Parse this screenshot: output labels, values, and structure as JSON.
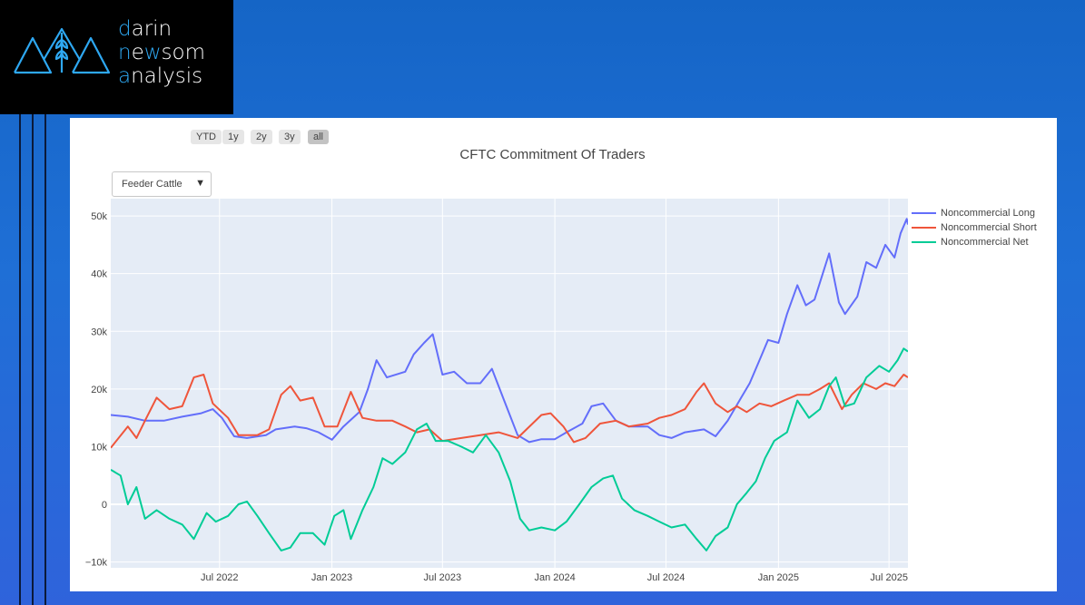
{
  "brand": {
    "line1_initial": "d",
    "line1_rest": "arin",
    "line2_initial": "n",
    "line2_mid": "e",
    "line2_accent": "w",
    "line2_rest": "som",
    "line3_initial": "a",
    "line3_rest": "nalysis",
    "accent_color": "#2ea8f2"
  },
  "range_buttons": [
    {
      "label": "YTD",
      "active": false
    },
    {
      "label": "1y",
      "active": false
    },
    {
      "label": "2y",
      "active": false
    },
    {
      "label": "3y",
      "active": false
    },
    {
      "label": "all",
      "active": true
    }
  ],
  "dropdown": {
    "selected": "Feeder Cattle"
  },
  "chart_data": {
    "type": "line",
    "title": "CFTC Commitment Of Traders",
    "xlabel": "",
    "ylabel": "",
    "ylim": [
      -11000,
      53000
    ],
    "xlim": [
      "2022-01-04",
      "2025-08-01"
    ],
    "yticks": [
      {
        "v": 50000,
        "label": "50k"
      },
      {
        "v": 40000,
        "label": "40k"
      },
      {
        "v": 30000,
        "label": "30k"
      },
      {
        "v": 20000,
        "label": "20k"
      },
      {
        "v": 10000,
        "label": "10k"
      },
      {
        "v": 0,
        "label": "0"
      },
      {
        "v": -10000,
        "label": "−10k"
      }
    ],
    "xticks": [
      {
        "date": "2022-07-01",
        "label": "Jul 2022"
      },
      {
        "date": "2023-01-01",
        "label": "Jan 2023"
      },
      {
        "date": "2023-07-01",
        "label": "Jul 2023"
      },
      {
        "date": "2024-01-01",
        "label": "Jan 2024"
      },
      {
        "date": "2024-07-01",
        "label": "Jul 2024"
      },
      {
        "date": "2025-01-01",
        "label": "Jan 2025"
      },
      {
        "date": "2025-07-01",
        "label": "Jul 2025"
      }
    ],
    "grid": true,
    "legend_position": "right",
    "series": [
      {
        "name": "Noncommercial Long",
        "color": "#636efa",
        "points": [
          [
            "2022-01-04",
            15500
          ],
          [
            "2022-02-01",
            15200
          ],
          [
            "2022-03-01",
            14500
          ],
          [
            "2022-04-01",
            14500
          ],
          [
            "2022-05-01",
            15200
          ],
          [
            "2022-06-01",
            15800
          ],
          [
            "2022-06-20",
            16500
          ],
          [
            "2022-07-05",
            15000
          ],
          [
            "2022-07-25",
            11800
          ],
          [
            "2022-08-15",
            11500
          ],
          [
            "2022-09-15",
            12000
          ],
          [
            "2022-10-01",
            13000
          ],
          [
            "2022-11-01",
            13500
          ],
          [
            "2022-11-20",
            13200
          ],
          [
            "2022-12-10",
            12500
          ],
          [
            "2023-01-01",
            11200
          ],
          [
            "2023-01-20",
            13500
          ],
          [
            "2023-02-15",
            16000
          ],
          [
            "2023-03-01",
            20000
          ],
          [
            "2023-03-15",
            25000
          ],
          [
            "2023-04-01",
            22000
          ],
          [
            "2023-05-01",
            23000
          ],
          [
            "2023-05-15",
            26000
          ],
          [
            "2023-06-01",
            28000
          ],
          [
            "2023-06-15",
            29500
          ],
          [
            "2023-07-01",
            22500
          ],
          [
            "2023-07-20",
            23000
          ],
          [
            "2023-08-10",
            21000
          ],
          [
            "2023-09-01",
            21000
          ],
          [
            "2023-09-20",
            23500
          ],
          [
            "2023-10-10",
            18000
          ],
          [
            "2023-11-01",
            12000
          ],
          [
            "2023-11-20",
            10800
          ],
          [
            "2023-12-10",
            11300
          ],
          [
            "2024-01-01",
            11300
          ],
          [
            "2024-01-20",
            12500
          ],
          [
            "2024-02-15",
            14000
          ],
          [
            "2024-03-01",
            17000
          ],
          [
            "2024-03-20",
            17500
          ],
          [
            "2024-04-10",
            14500
          ],
          [
            "2024-05-01",
            13500
          ],
          [
            "2024-06-01",
            13500
          ],
          [
            "2024-06-20",
            12000
          ],
          [
            "2024-07-10",
            11500
          ],
          [
            "2024-08-01",
            12500
          ],
          [
            "2024-09-01",
            13000
          ],
          [
            "2024-09-20",
            11800
          ],
          [
            "2024-10-10",
            14500
          ],
          [
            "2024-11-01",
            18500
          ],
          [
            "2024-11-15",
            21000
          ],
          [
            "2024-12-01",
            25000
          ],
          [
            "2024-12-15",
            28500
          ],
          [
            "2025-01-01",
            28000
          ],
          [
            "2025-01-15",
            33000
          ],
          [
            "2025-02-01",
            38000
          ],
          [
            "2025-02-15",
            34500
          ],
          [
            "2025-03-01",
            35500
          ],
          [
            "2025-03-25",
            43500
          ],
          [
            "2025-04-10",
            35000
          ],
          [
            "2025-04-20",
            33000
          ],
          [
            "2025-05-10",
            36000
          ],
          [
            "2025-05-25",
            42000
          ],
          [
            "2025-06-10",
            41000
          ],
          [
            "2025-06-25",
            45000
          ],
          [
            "2025-07-10",
            42800
          ],
          [
            "2025-07-20",
            47000
          ],
          [
            "2025-07-30",
            49500
          ],
          [
            "2025-08-01",
            48500
          ]
        ]
      },
      {
        "name": "Noncommercial Short",
        "color": "#ef553b",
        "points": [
          [
            "2022-01-04",
            9800
          ],
          [
            "2022-02-01",
            13500
          ],
          [
            "2022-02-15",
            11500
          ],
          [
            "2022-03-01",
            14500
          ],
          [
            "2022-03-20",
            18500
          ],
          [
            "2022-04-10",
            16500
          ],
          [
            "2022-05-01",
            17000
          ],
          [
            "2022-05-20",
            22000
          ],
          [
            "2022-06-05",
            22500
          ],
          [
            "2022-06-20",
            17500
          ],
          [
            "2022-07-15",
            15000
          ],
          [
            "2022-08-01",
            12000
          ],
          [
            "2022-09-01",
            12000
          ],
          [
            "2022-09-20",
            13000
          ],
          [
            "2022-10-10",
            19000
          ],
          [
            "2022-10-25",
            20500
          ],
          [
            "2022-11-10",
            18000
          ],
          [
            "2022-12-01",
            18500
          ],
          [
            "2022-12-20",
            13500
          ],
          [
            "2023-01-10",
            13500
          ],
          [
            "2023-02-01",
            19500
          ],
          [
            "2023-02-20",
            15000
          ],
          [
            "2023-03-15",
            14500
          ],
          [
            "2023-04-10",
            14500
          ],
          [
            "2023-05-01",
            13500
          ],
          [
            "2023-05-20",
            12500
          ],
          [
            "2023-06-10",
            13000
          ],
          [
            "2023-07-01",
            11000
          ],
          [
            "2023-08-01",
            11500
          ],
          [
            "2023-09-01",
            12000
          ],
          [
            "2023-10-01",
            12500
          ],
          [
            "2023-11-01",
            11500
          ],
          [
            "2023-12-10",
            15500
          ],
          [
            "2023-12-25",
            15800
          ],
          [
            "2024-01-15",
            13500
          ],
          [
            "2024-02-01",
            10800
          ],
          [
            "2024-02-20",
            11500
          ],
          [
            "2024-03-15",
            14000
          ],
          [
            "2024-04-10",
            14500
          ],
          [
            "2024-05-01",
            13500
          ],
          [
            "2024-06-01",
            14000
          ],
          [
            "2024-06-20",
            15000
          ],
          [
            "2024-07-10",
            15500
          ],
          [
            "2024-08-01",
            16500
          ],
          [
            "2024-08-20",
            19500
          ],
          [
            "2024-09-01",
            21000
          ],
          [
            "2024-09-20",
            17500
          ],
          [
            "2024-10-10",
            16000
          ],
          [
            "2024-10-25",
            17000
          ],
          [
            "2024-11-10",
            16000
          ],
          [
            "2024-12-01",
            17500
          ],
          [
            "2024-12-20",
            17000
          ],
          [
            "2025-01-10",
            18000
          ],
          [
            "2025-02-01",
            19000
          ],
          [
            "2025-02-20",
            19000
          ],
          [
            "2025-03-10",
            20000
          ],
          [
            "2025-03-25",
            21000
          ],
          [
            "2025-04-15",
            16500
          ],
          [
            "2025-05-01",
            19000
          ],
          [
            "2025-05-20",
            21000
          ],
          [
            "2025-06-10",
            20000
          ],
          [
            "2025-06-25",
            21000
          ],
          [
            "2025-07-10",
            20500
          ],
          [
            "2025-07-25",
            22500
          ],
          [
            "2025-08-01",
            22000
          ]
        ]
      },
      {
        "name": "Noncommercial Net",
        "color": "#00cc96",
        "points": [
          [
            "2022-01-04",
            6000
          ],
          [
            "2022-01-20",
            5000
          ],
          [
            "2022-02-01",
            0
          ],
          [
            "2022-02-15",
            3000
          ],
          [
            "2022-03-01",
            -2500
          ],
          [
            "2022-03-20",
            -1000
          ],
          [
            "2022-04-10",
            -2500
          ],
          [
            "2022-05-01",
            -3500
          ],
          [
            "2022-05-20",
            -6000
          ],
          [
            "2022-06-10",
            -1500
          ],
          [
            "2022-06-25",
            -3000
          ],
          [
            "2022-07-15",
            -2000
          ],
          [
            "2022-08-01",
            0
          ],
          [
            "2022-08-15",
            500
          ],
          [
            "2022-09-01",
            -2000
          ],
          [
            "2022-09-20",
            -5000
          ],
          [
            "2022-10-10",
            -8000
          ],
          [
            "2022-10-25",
            -7500
          ],
          [
            "2022-11-10",
            -5000
          ],
          [
            "2022-12-01",
            -5000
          ],
          [
            "2022-12-20",
            -7000
          ],
          [
            "2023-01-05",
            -2000
          ],
          [
            "2023-01-20",
            -1000
          ],
          [
            "2023-02-01",
            -6000
          ],
          [
            "2023-02-20",
            -1000
          ],
          [
            "2023-03-10",
            3000
          ],
          [
            "2023-03-25",
            8000
          ],
          [
            "2023-04-10",
            7000
          ],
          [
            "2023-05-01",
            9000
          ],
          [
            "2023-05-20",
            13000
          ],
          [
            "2023-06-05",
            14000
          ],
          [
            "2023-06-20",
            11000
          ],
          [
            "2023-07-10",
            11000
          ],
          [
            "2023-08-01",
            10000
          ],
          [
            "2023-08-20",
            9000
          ],
          [
            "2023-09-10",
            12000
          ],
          [
            "2023-10-01",
            9000
          ],
          [
            "2023-10-20",
            4000
          ],
          [
            "2023-11-05",
            -2500
          ],
          [
            "2023-11-20",
            -4500
          ],
          [
            "2023-12-10",
            -4000
          ],
          [
            "2024-01-01",
            -4500
          ],
          [
            "2024-01-20",
            -3000
          ],
          [
            "2024-02-10",
            0
          ],
          [
            "2024-03-01",
            3000
          ],
          [
            "2024-03-20",
            4500
          ],
          [
            "2024-04-05",
            5000
          ],
          [
            "2024-04-20",
            1000
          ],
          [
            "2024-05-10",
            -1000
          ],
          [
            "2024-06-01",
            -2000
          ],
          [
            "2024-06-20",
            -3000
          ],
          [
            "2024-07-10",
            -4000
          ],
          [
            "2024-08-01",
            -3500
          ],
          [
            "2024-08-20",
            -6000
          ],
          [
            "2024-09-05",
            -8000
          ],
          [
            "2024-09-20",
            -5500
          ],
          [
            "2024-10-10",
            -4000
          ],
          [
            "2024-10-25",
            0
          ],
          [
            "2024-11-10",
            2000
          ],
          [
            "2024-11-25",
            4000
          ],
          [
            "2024-12-10",
            8000
          ],
          [
            "2024-12-25",
            11000
          ],
          [
            "2025-01-15",
            12500
          ],
          [
            "2025-02-01",
            18000
          ],
          [
            "2025-02-20",
            15000
          ],
          [
            "2025-03-10",
            16500
          ],
          [
            "2025-03-25",
            20500
          ],
          [
            "2025-04-05",
            22000
          ],
          [
            "2025-04-20",
            17000
          ],
          [
            "2025-05-05",
            17500
          ],
          [
            "2025-05-25",
            22000
          ],
          [
            "2025-06-15",
            24000
          ],
          [
            "2025-07-01",
            23000
          ],
          [
            "2025-07-15",
            25000
          ],
          [
            "2025-07-25",
            27000
          ],
          [
            "2025-08-01",
            26500
          ]
        ]
      }
    ]
  }
}
